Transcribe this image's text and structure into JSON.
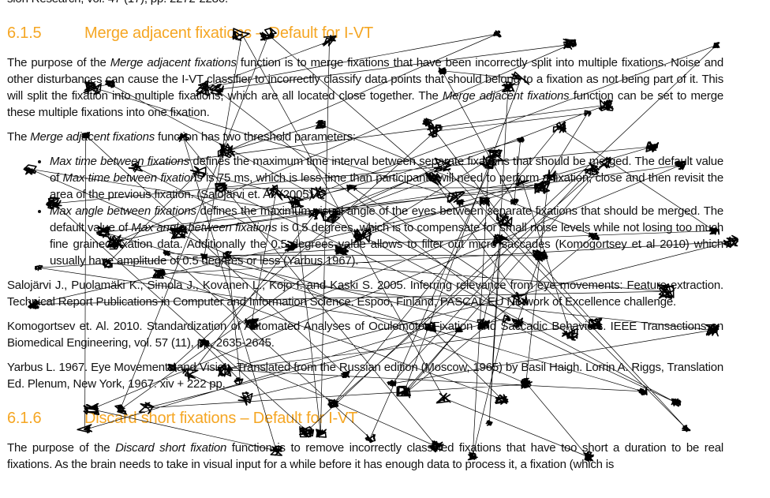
{
  "top_fragment": "sion Research, vol. 47 (17), pp. 2272-2286.",
  "section_1": {
    "number": "6.1.5",
    "title": "Merge adjacent fixations – Default for I-VT",
    "paragraph_1": [
      "The purpose of the ",
      "Merge adjacent fixations",
      " function is to merge fixations that have been incorrectly split into multiple fixations. Noise and other disturbances can cause the I-VT classifier to incorrectly classify data points that should belong to a fixation as not being part of it. This will split the fixation into multiple fixations, which are all located close together. The ",
      "Merge adjacent fixations",
      " function can be set to merge these multiple fixations into one fixation."
    ],
    "paragraph_2": [
      "The ",
      "Merge adjacent fixations",
      " function has two threshold parameters:"
    ],
    "bullets": [
      [
        "Max time between fixations",
        " defines the maximum time interval between separate fixations that should be merged. The default value of ",
        "Max time between fixations",
        " is 75 ms, which is less time than participants will need to perform a fixation, close and then revisit the area of the previous fixation. (Salojärvi et. Al. (2005)."
      ],
      [
        "Max angle between fixations",
        " defines the maximum visual angle of the eyes between separate fixations that should be merged. The default value of ",
        "Max angle between fixations",
        " is 0.5 degrees, which is to compensate for small noise levels while not losing too much fine grained fixation data. Additionally the 0.5 degrees value allows to filter out micro saccades (Komogortsey et al 2010) which usually have amplitude of 0.5 degrees or less (Yarbus 1967)."
      ]
    ],
    "references": [
      "Salojärvi J., Puolamäki K., Simola J., Kovanen L., Kojo I. and Kaski S. 2005. Inferring relevance from eye movements: Feature extraction. Technical Report Publications in Computer and Information Science. Espoo, Finland, PASCAL EU Network of Excellence challenge.",
      "Komogortsev et. Al. 2010. Standardization of Automated Analyses of Oculomotor Fixation and Saccadic Behaviors. IEEE Transactions on Biomedical Engineering, vol. 57 (11), pp. 2635-2645.",
      "Yarbus L. 1967. Eye Movements and Vision. Translated from the Russian edition (Moscow, 1965) by Basil Haigh. Lorrin A. Riggs, Translation Ed. Plenum, New York, 1967. xiv + 222 pp."
    ]
  },
  "section_2": {
    "number": "6.1.6",
    "title": "Discard short fixations – Default for I-VT",
    "paragraph_1": [
      "The purpose of the ",
      "Discard short fixation",
      " function is to remove incorrectly classified fixations that have too short a duration to be real fixations. As the brain needs to take in visual input for a while before it has enough data to process it, a fixation (which is"
    ]
  }
}
